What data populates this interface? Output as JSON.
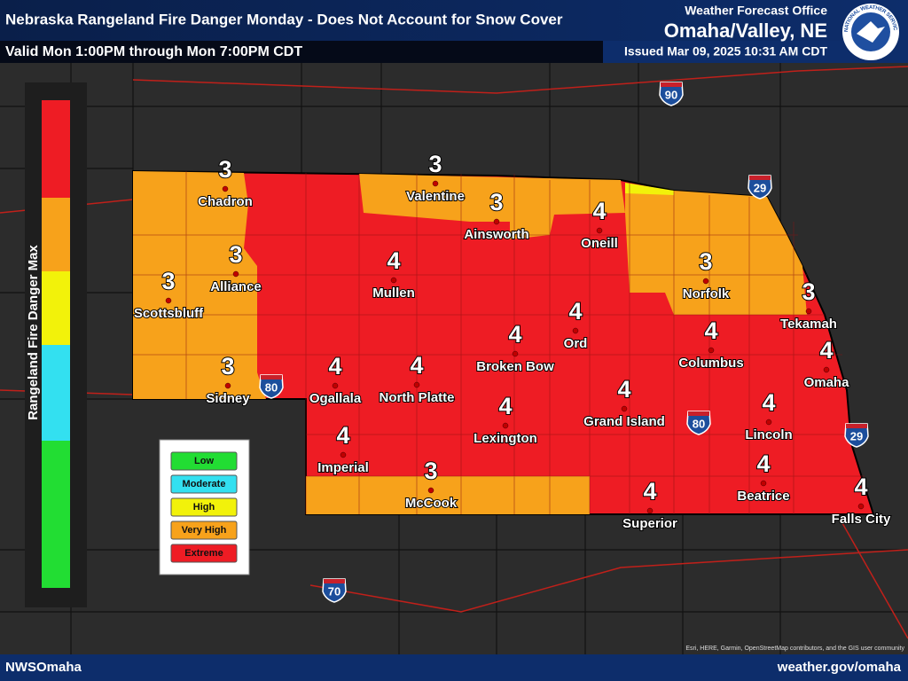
{
  "header": {
    "title": "Nebraska Rangeland Fire Danger Monday - Does Not Account for Snow Cover",
    "valid": "Valid Mon 1:00PM through Mon 7:00PM CDT",
    "office_label": "Weather Forecast Office",
    "office": "Omaha/Valley, NE",
    "issued": "Issued Mar 09, 2025 10:31 AM CDT",
    "logo_text": "NATIONAL WEATHER SERVICE"
  },
  "colorbar": {
    "title": "Rangeland Fire Danger Max"
  },
  "legend": {
    "items": [
      "Low",
      "Moderate",
      "High",
      "Very High",
      "Extreme"
    ]
  },
  "cities": [
    {
      "name": "Chadron",
      "value": 3
    },
    {
      "name": "Valentine",
      "value": 3
    },
    {
      "name": "Ainsworth",
      "value": 3
    },
    {
      "name": "Oneill",
      "value": 4
    },
    {
      "name": "Alliance",
      "value": 3
    },
    {
      "name": "Scottsbluff",
      "value": 3
    },
    {
      "name": "Mullen",
      "value": 4
    },
    {
      "name": "Norfolk",
      "value": 3
    },
    {
      "name": "Tekamah",
      "value": 3
    },
    {
      "name": "Ord",
      "value": 4
    },
    {
      "name": "Broken Bow",
      "value": 4
    },
    {
      "name": "Columbus",
      "value": 4
    },
    {
      "name": "Omaha",
      "value": 4
    },
    {
      "name": "Sidney",
      "value": 3
    },
    {
      "name": "Ogallala",
      "value": 4
    },
    {
      "name": "North Platte",
      "value": 4
    },
    {
      "name": "Grand Island",
      "value": 4
    },
    {
      "name": "Lincoln",
      "value": 4
    },
    {
      "name": "Lexington",
      "value": 4
    },
    {
      "name": "Imperial",
      "value": 4
    },
    {
      "name": "Beatrice",
      "value": 4
    },
    {
      "name": "McCook",
      "value": 3
    },
    {
      "name": "Superior",
      "value": 4
    },
    {
      "name": "Falls City",
      "value": 4
    }
  ],
  "interstates": [
    "90",
    "29",
    "80",
    "80",
    "29",
    "70"
  ],
  "footer": {
    "left": "NWSOmaha",
    "right": "weather.gov/omaha",
    "attribution": "Esri, HERE, Garmin, OpenStreetMap contributors, and the GIS user community"
  }
}
